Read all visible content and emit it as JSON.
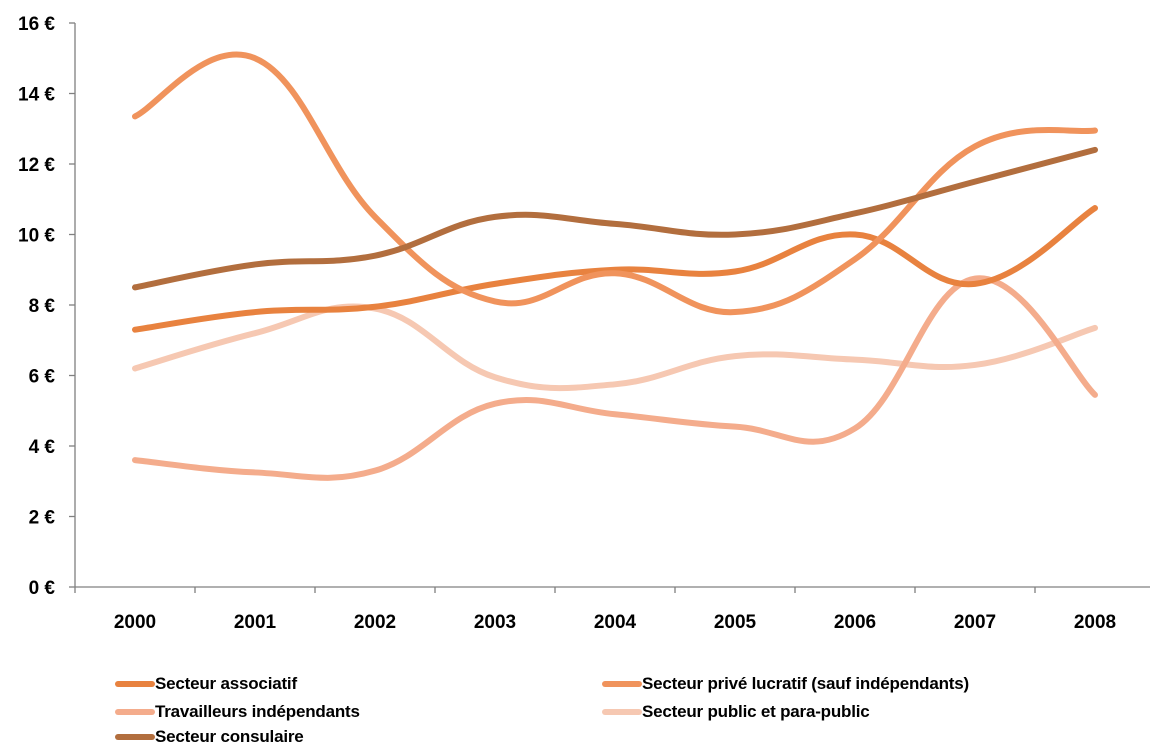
{
  "chart_data": {
    "type": "line",
    "title": "",
    "xlabel": "",
    "ylabel": "",
    "categories": [
      "2000",
      "2001",
      "2002",
      "2003",
      "2004",
      "2005",
      "2006",
      "2007",
      "2008"
    ],
    "ylim": [
      0,
      16
    ],
    "yticks": [
      "0 €",
      "2 €",
      "4 €",
      "6 €",
      "8 €",
      "10 €",
      "12 €",
      "14 €",
      "16 €"
    ],
    "grid": false,
    "legend_position": "bottom",
    "series": [
      {
        "name": "Secteur associatif",
        "color": "#E8823F",
        "values": [
          7.3,
          7.8,
          7.95,
          8.6,
          9.0,
          8.95,
          10.0,
          8.6,
          10.75
        ]
      },
      {
        "name": "Secteur privé lucratif (sauf indépendants)",
        "color": "#F0935C",
        "values": [
          13.35,
          15.0,
          10.5,
          8.1,
          8.9,
          7.8,
          9.3,
          12.5,
          12.95
        ]
      },
      {
        "name": "Travailleurs indépendants",
        "color": "#F4AC8C",
        "values": [
          3.6,
          3.25,
          3.3,
          5.2,
          4.9,
          4.55,
          4.5,
          8.75,
          5.45
        ]
      },
      {
        "name": "Secteur public et para-public",
        "color": "#F6C8B2",
        "values": [
          6.2,
          7.2,
          7.9,
          5.95,
          5.75,
          6.55,
          6.45,
          6.3,
          7.35
        ]
      },
      {
        "name": "Secteur consulaire",
        "color": "#B26E3E",
        "values": [
          8.5,
          9.15,
          9.4,
          10.5,
          10.3,
          10.0,
          10.6,
          11.5,
          12.4
        ]
      }
    ]
  }
}
